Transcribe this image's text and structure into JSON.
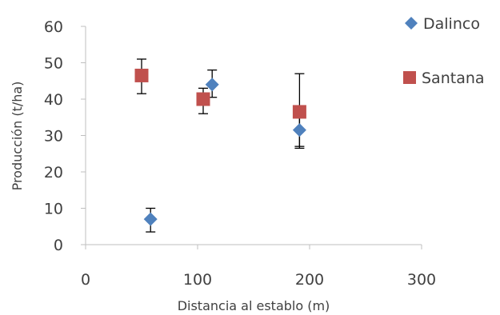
{
  "chart_data": {
    "type": "scatter",
    "title": "",
    "xlabel": "Distancia al establo (m)",
    "ylabel": "Producción (t/ha)",
    "xlim": [
      0,
      300
    ],
    "ylim": [
      0,
      60
    ],
    "x_ticks": [
      "0",
      "100",
      "200",
      "300"
    ],
    "y_ticks": [
      "0",
      "10",
      "20",
      "30",
      "40",
      "50",
      "60"
    ],
    "grid": false,
    "legend_position": "right",
    "series": [
      {
        "name": "Dalinco",
        "marker": "diamond",
        "color": "#4F81BD",
        "points": [
          {
            "x": 58,
            "y": 7,
            "err_low": 3.5,
            "err_high": 10
          },
          {
            "x": 113,
            "y": 44,
            "err_low": 40.5,
            "err_high": 48
          },
          {
            "x": 191,
            "y": 31.5,
            "err_low": 26.5,
            "err_high": 36.5
          }
        ]
      },
      {
        "name": "Santana",
        "marker": "square",
        "color": "#C0504D",
        "points": [
          {
            "x": 50,
            "y": 46.5,
            "err_low": 41.5,
            "err_high": 51
          },
          {
            "x": 105,
            "y": 40,
            "err_low": 36,
            "err_high": 43
          },
          {
            "x": 191,
            "y": 36.5,
            "err_low": 27,
            "err_high": 47
          }
        ]
      }
    ]
  }
}
